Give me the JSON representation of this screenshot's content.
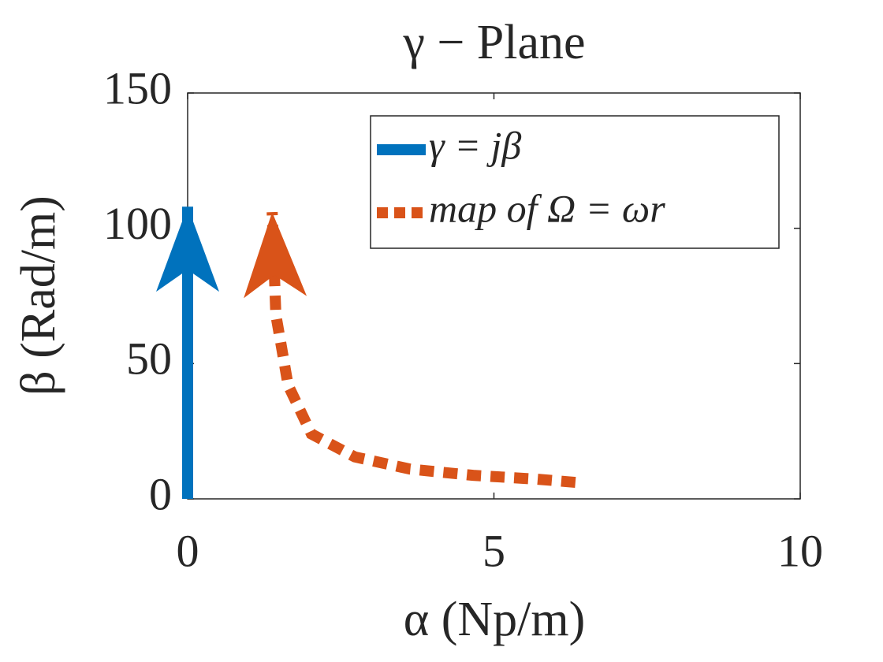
{
  "chart_data": {
    "type": "line",
    "title": "γ − Plane",
    "x_label": "α (Np/m)",
    "y_label": "β (Rad/m)",
    "xlim": [
      0,
      10
    ],
    "xticks": [
      0,
      5,
      10
    ],
    "ylim": [
      0,
      150
    ],
    "yticks": [
      0,
      50,
      100,
      150
    ],
    "grid": false,
    "legend": "upper right",
    "series": [
      {
        "name": "γ = jβ",
        "color": "#0072bd",
        "style": "solid",
        "x": [
          0,
          0
        ],
        "values": [
          0,
          108
        ]
      },
      {
        "name": "map of Ω = ωr",
        "color": "#d95319",
        "style": "dotted",
        "x": [
          6.33,
          5.69,
          4.66,
          3.63,
          2.73,
          2.02,
          1.64,
          1.51,
          1.44,
          1.38
        ],
        "values": [
          6.1,
          7.3,
          8.7,
          11,
          15.5,
          24,
          42,
          59,
          68,
          106
        ]
      }
    ]
  }
}
